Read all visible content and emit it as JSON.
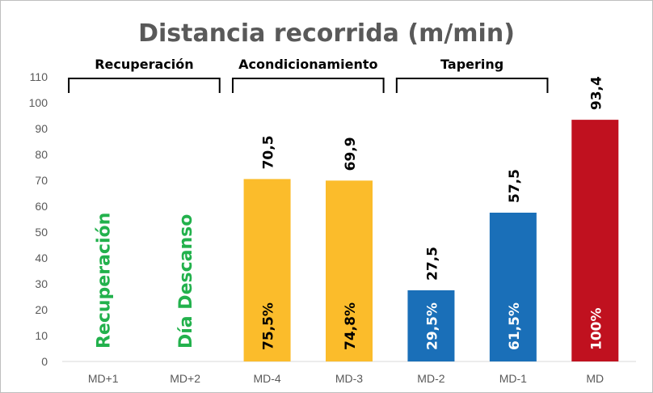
{
  "chart_data": {
    "type": "bar",
    "title": "Distancia recorrida (m/min)",
    "categories": [
      "MD+1",
      "MD+2",
      "MD-4",
      "MD-3",
      "MD-2",
      "MD-1",
      "MD"
    ],
    "values": [
      null,
      null,
      70.5,
      69.9,
      27.5,
      57.5,
      93.4
    ],
    "value_labels": [
      "",
      "",
      "70,5",
      "69,9",
      "27,5",
      "57,5",
      "93,4"
    ],
    "percent_labels": [
      "",
      "",
      "75,5%",
      "74,8%",
      "29,5%",
      "61,5%",
      "100%"
    ],
    "bar_colors": [
      "",
      "",
      "#fbbc2b",
      "#fbbc2b",
      "#1a6fb8",
      "#1a6fb8",
      "#c0111f"
    ],
    "empty_notes": [
      "Recuperación",
      "Día Descanso"
    ],
    "ylim": [
      0,
      110
    ],
    "yticks": [
      0,
      10,
      20,
      30,
      40,
      50,
      60,
      70,
      80,
      90,
      100,
      110
    ],
    "grid": false,
    "phases": [
      {
        "label": "Recuperación",
        "from": 0,
        "to": 1
      },
      {
        "label": "Acondicionamiento",
        "from": 2,
        "to": 3
      },
      {
        "label": "Tapering",
        "from": 4,
        "to": 5
      }
    ],
    "note_color": "#22b14c",
    "xlabel": "",
    "ylabel": ""
  }
}
